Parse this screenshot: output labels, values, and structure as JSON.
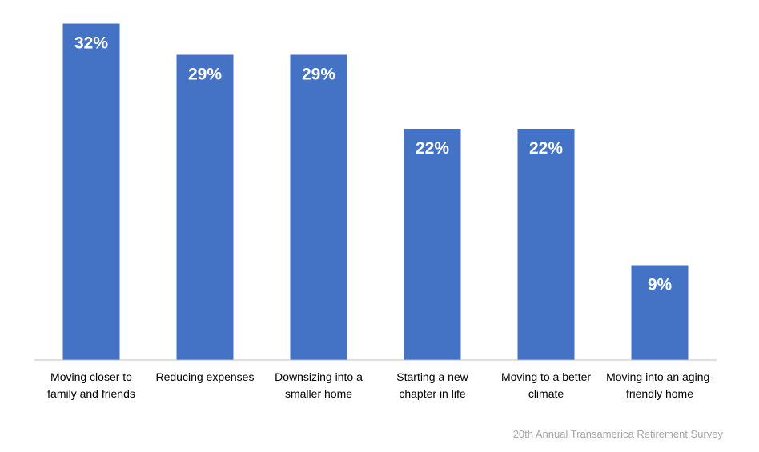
{
  "chart_data": {
    "type": "bar",
    "categories": [
      [
        "Moving closer to",
        "family and friends"
      ],
      [
        "Reducing expenses"
      ],
      [
        "Downsizing into a",
        "smaller home"
      ],
      [
        "Starting a new",
        "chapter in life"
      ],
      [
        "Moving to a better",
        "climate"
      ],
      [
        "Moving into an aging-",
        "friendly home"
      ]
    ],
    "values": [
      32,
      29,
      29,
      22,
      22,
      9
    ],
    "value_labels": [
      "32%",
      "29%",
      "29%",
      "22%",
      "22%",
      "9%"
    ],
    "unit": "%",
    "ylim": [
      0,
      34
    ],
    "grid": false,
    "legend": "none",
    "bar_color": "#4472c4",
    "axis_color": "#bfbfbf"
  },
  "source": "20th Annual Transamerica Retirement Survey"
}
